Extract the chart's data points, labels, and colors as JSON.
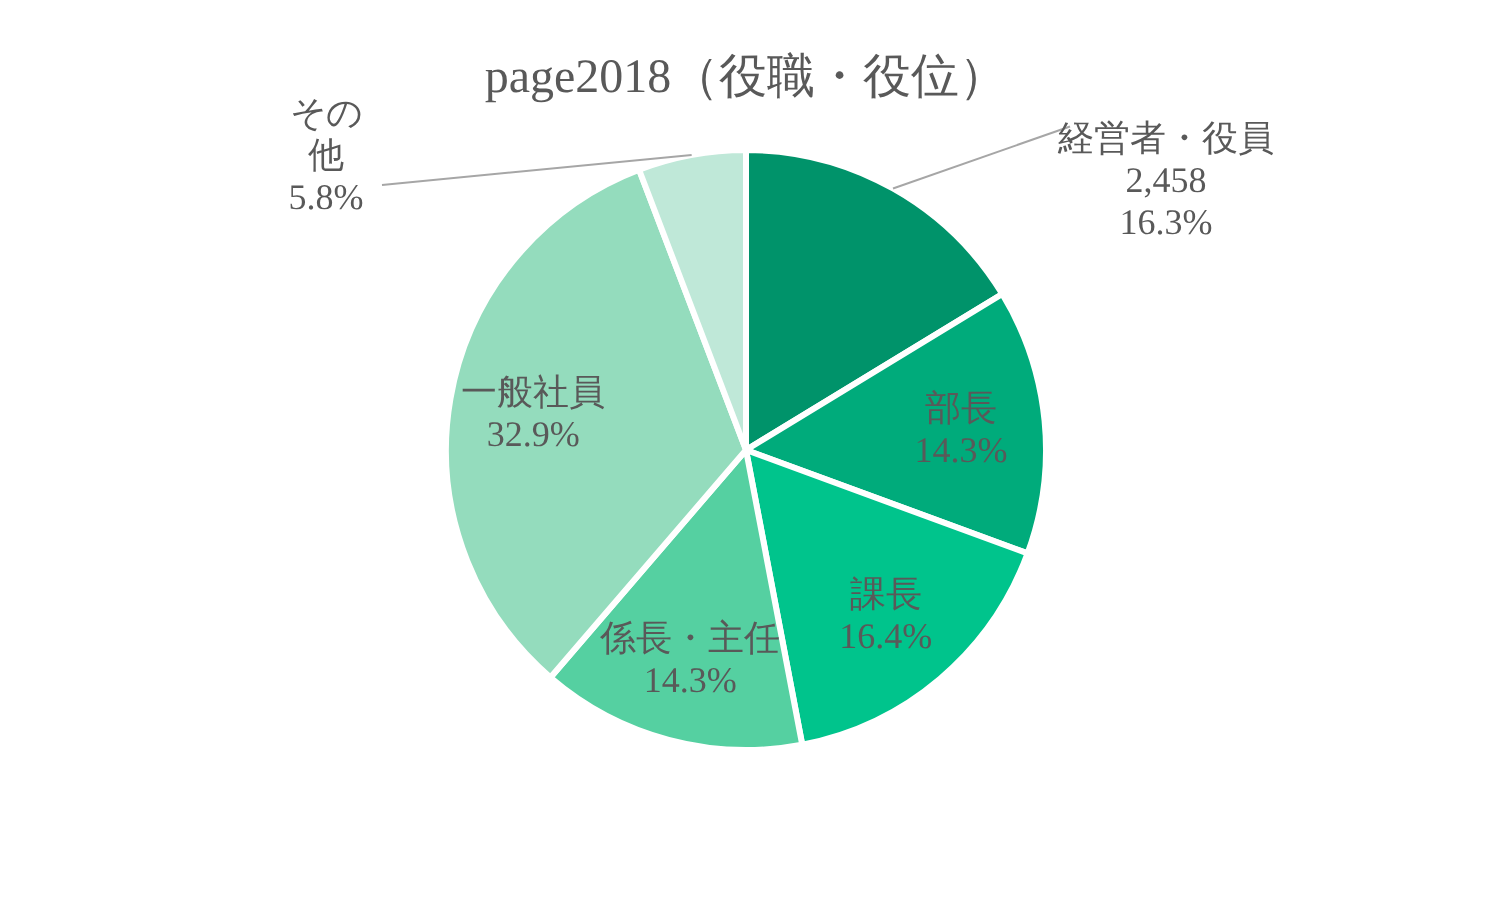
{
  "chart_data": {
    "type": "pie",
    "title": "page2018（役職・役位）",
    "categories": [
      "経営者・役員",
      "部長",
      "課長",
      "係長・主任",
      "一般社員",
      "その他"
    ],
    "values": [
      16.3,
      14.3,
      16.4,
      14.3,
      32.9,
      5.8
    ],
    "value_labels": [
      "2,458\n16.3%",
      "14.3%",
      "16.4%",
      "14.3%",
      "32.9%",
      "5.8%"
    ],
    "colors": [
      "#00936a",
      "#00ab7b",
      "#00c48c",
      "#55d0a1",
      "#94dcbd",
      "#bfe8d8"
    ],
    "legend": false
  }
}
